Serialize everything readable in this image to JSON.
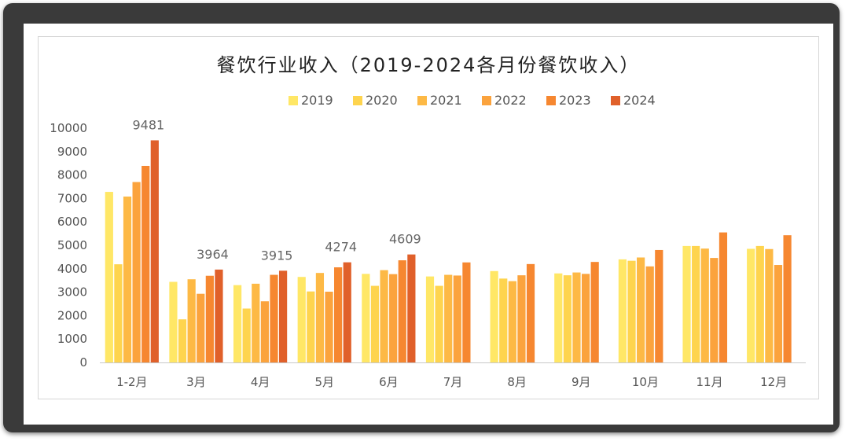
{
  "chart_data": {
    "type": "bar",
    "title": "餐饮行业收入（2019-2024各月份餐饮收入）",
    "categories": [
      "1-2月",
      "3月",
      "4月",
      "5月",
      "6月",
      "7月",
      "8月",
      "9月",
      "10月",
      "11月",
      "12月"
    ],
    "ylim": [
      0,
      10000
    ],
    "yticks": [
      0,
      1000,
      2000,
      3000,
      4000,
      5000,
      6000,
      7000,
      8000,
      9000,
      10000
    ],
    "grid": false,
    "legend_position": "top",
    "series": [
      {
        "name": "2019",
        "color": "#ffe766",
        "values": [
          7280,
          3440,
          3300,
          3650,
          3780,
          3670,
          3900,
          3800,
          4400,
          4970,
          4850
        ]
      },
      {
        "name": "2020",
        "color": "#fed44e",
        "values": [
          4190,
          1840,
          2300,
          3030,
          3270,
          3270,
          3580,
          3720,
          4340,
          4970,
          4970
        ]
      },
      {
        "name": "2021",
        "color": "#fdb945",
        "values": [
          7080,
          3550,
          3360,
          3820,
          3940,
          3740,
          3470,
          3840,
          4480,
          4860,
          4840
        ]
      },
      {
        "name": "2022",
        "color": "#fba33d",
        "values": [
          7700,
          2930,
          2610,
          3020,
          3770,
          3710,
          3720,
          3780,
          4100,
          4460,
          4160
        ]
      },
      {
        "name": "2023",
        "color": "#f68730",
        "values": [
          8390,
          3700,
          3740,
          4060,
          4360,
          4270,
          4200,
          4290,
          4800,
          5550,
          5430
        ]
      },
      {
        "name": "2024",
        "color": "#e0602a",
        "values": [
          9481,
          3964,
          3915,
          4274,
          4609,
          null,
          null,
          null,
          null,
          null,
          null
        ]
      }
    ],
    "data_labels": [
      {
        "category": "1-2月",
        "series": "2024",
        "text": "9481"
      },
      {
        "category": "3月",
        "series": "2024",
        "text": "3964"
      },
      {
        "category": "4月",
        "series": "2024",
        "text": "3915"
      },
      {
        "category": "5月",
        "series": "2024",
        "text": "4274"
      },
      {
        "category": "6月",
        "series": "2024",
        "text": "4609"
      }
    ]
  }
}
